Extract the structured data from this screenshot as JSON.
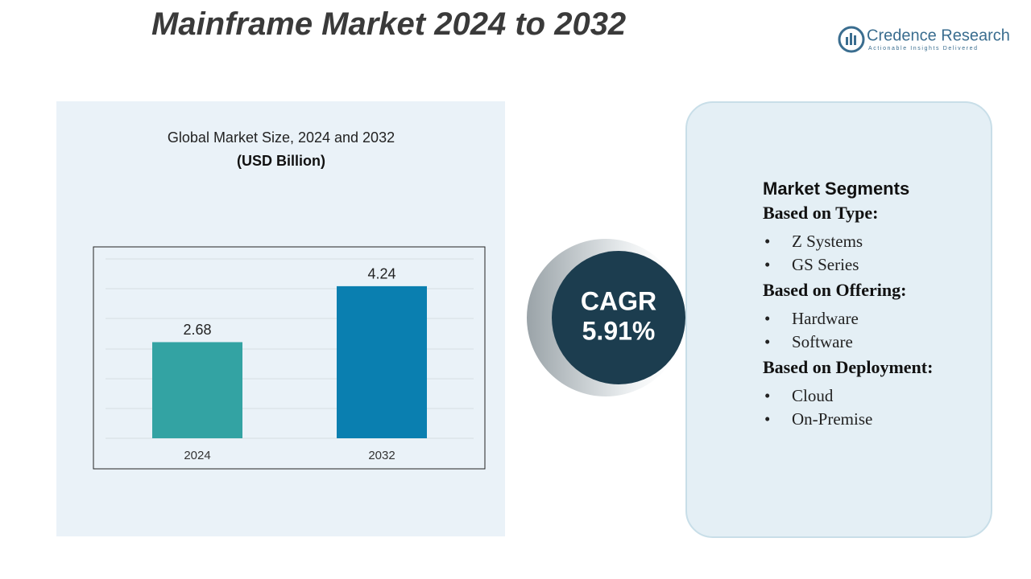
{
  "header": {
    "title": "Mainframe Market 2024 to 2032"
  },
  "logo": {
    "name": "Credence Research",
    "tagline": "Actionable Insights Delivered"
  },
  "chart_data": {
    "type": "bar",
    "title": "Global Market Size, 2024 and 2032",
    "subtitle": "(USD Billion)",
    "categories": [
      "2024",
      "2032"
    ],
    "values": [
      2.68,
      4.24
    ],
    "colors": [
      "#33a3a3",
      "#0a7fb0"
    ],
    "ylim": [
      0,
      5
    ]
  },
  "cagr": {
    "label": "CAGR",
    "value": "5.91%"
  },
  "segments": {
    "heading": "Market Segments",
    "groups": [
      {
        "title": "Based on Type:",
        "items": [
          "Z Systems",
          "GS Series"
        ]
      },
      {
        "title": "Based on Offering:",
        "items": [
          "Hardware",
          "Software"
        ]
      },
      {
        "title": "Based on Deployment:",
        "items": [
          "Cloud",
          "On-Premise"
        ]
      }
    ]
  }
}
